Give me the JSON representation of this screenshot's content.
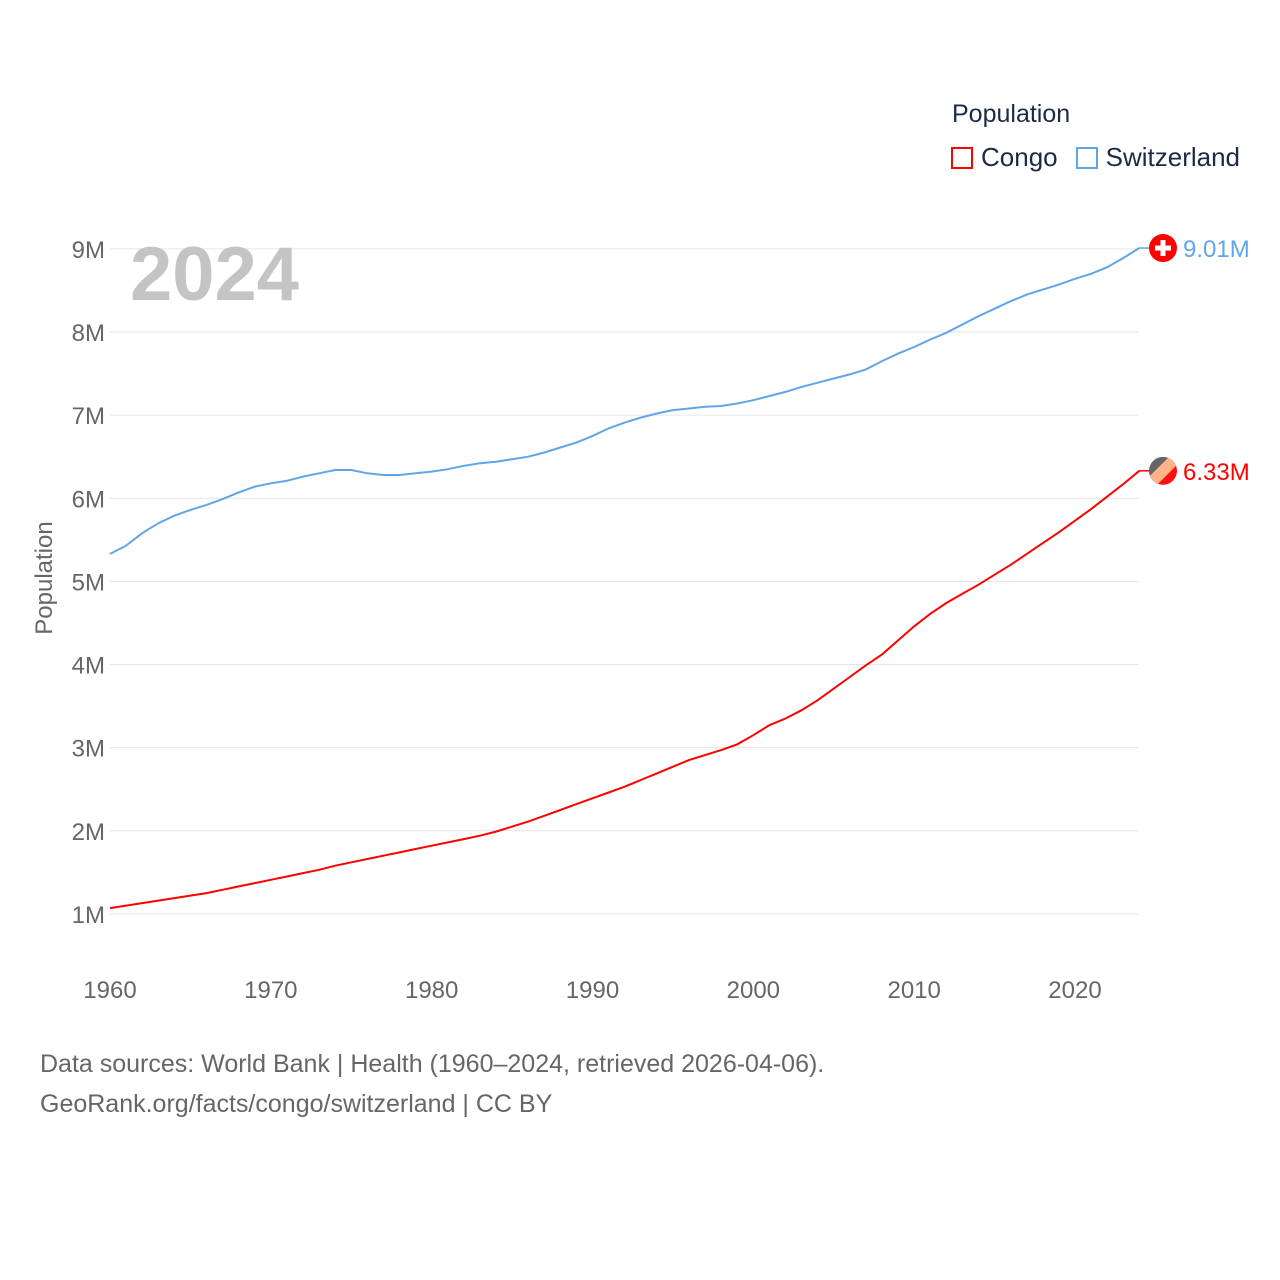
{
  "chart_data": {
    "type": "line",
    "title": "Population",
    "year_label": "2024",
    "ylabel": "Population",
    "xlabel": "",
    "xlim": [
      1960,
      2024
    ],
    "ylim": [
      0,
      9.5
    ],
    "x_ticks": [
      "1960",
      "1970",
      "1980",
      "1990",
      "2000",
      "2010",
      "2020"
    ],
    "y_ticks": [
      "1M",
      "2M",
      "3M",
      "4M",
      "5M",
      "6M",
      "7M",
      "8M",
      "9M"
    ],
    "grid": true,
    "legend_position": "top-right",
    "units": "millions",
    "series": [
      {
        "name": "Congo",
        "color": "#ff0000",
        "end_label": "6.33M",
        "flag": "congo-flag",
        "values": [
          1.07,
          1.1,
          1.13,
          1.16,
          1.19,
          1.22,
          1.25,
          1.29,
          1.33,
          1.37,
          1.41,
          1.45,
          1.49,
          1.53,
          1.58,
          1.62,
          1.66,
          1.7,
          1.74,
          1.78,
          1.82,
          1.86,
          1.9,
          1.94,
          1.99,
          2.05,
          2.11,
          2.18,
          2.25,
          2.32,
          2.39,
          2.46,
          2.53,
          2.61,
          2.69,
          2.77,
          2.85,
          2.91,
          2.97,
          3.04,
          3.15,
          3.27,
          3.35,
          3.45,
          3.57,
          3.71,
          3.85,
          3.99,
          4.12,
          4.29,
          4.46,
          4.61,
          4.74,
          4.85,
          4.96,
          5.08,
          5.2,
          5.33,
          5.46,
          5.59,
          5.73,
          5.87,
          6.02,
          6.17,
          6.33
        ]
      },
      {
        "name": "Switzerland",
        "color": "#60a5ea",
        "end_label": "9.01M",
        "flag": "switzerland-flag",
        "values": [
          5.33,
          5.43,
          5.58,
          5.7,
          5.79,
          5.86,
          5.92,
          5.99,
          6.07,
          6.14,
          6.18,
          6.21,
          6.26,
          6.3,
          6.34,
          6.34,
          6.3,
          6.28,
          6.28,
          6.3,
          6.32,
          6.35,
          6.39,
          6.42,
          6.44,
          6.47,
          6.5,
          6.55,
          6.61,
          6.67,
          6.75,
          6.84,
          6.91,
          6.97,
          7.02,
          7.06,
          7.08,
          7.1,
          7.11,
          7.14,
          7.18,
          7.23,
          7.28,
          7.34,
          7.39,
          7.44,
          7.49,
          7.55,
          7.65,
          7.74,
          7.82,
          7.91,
          7.99,
          8.09,
          8.19,
          8.28,
          8.37,
          8.45,
          8.51,
          8.57,
          8.64,
          8.7,
          8.78,
          8.89,
          9.01
        ]
      }
    ]
  },
  "footer": {
    "line1": "Data sources: World Bank | Health (1960–2024, retrieved 2026-04-06).",
    "line2": "GeoRank.org/facts/congo/switzerland | CC BY"
  }
}
